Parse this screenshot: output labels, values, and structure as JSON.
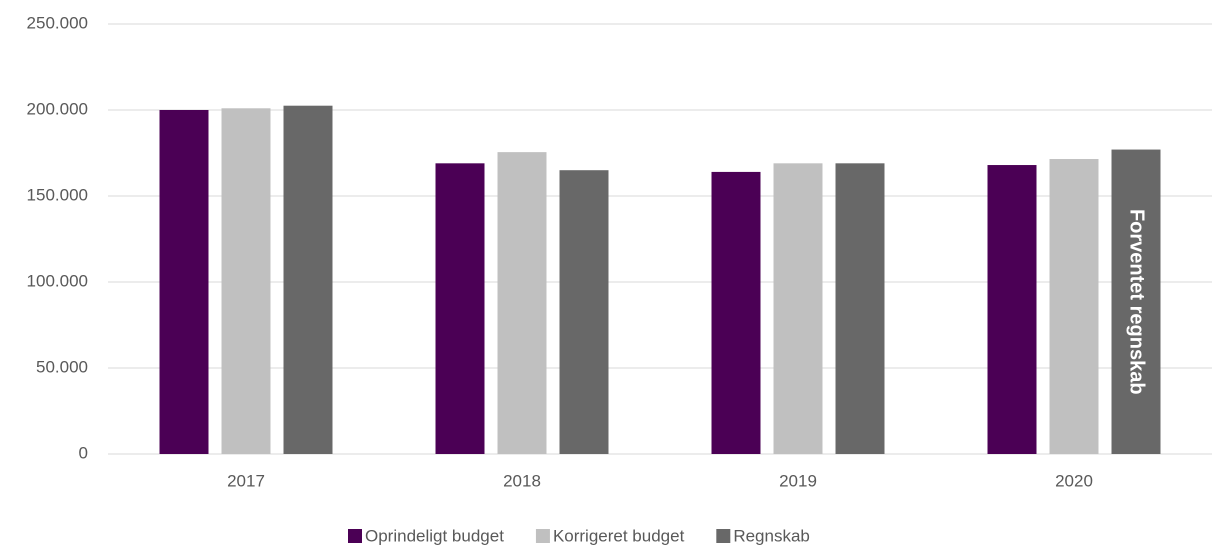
{
  "chart_data": {
    "type": "bar",
    "categories": [
      "2017",
      "2018",
      "2019",
      "2020"
    ],
    "series": [
      {
        "name": "Oprindeligt budget",
        "color": "#4b0055",
        "values": [
          200000,
          169000,
          164000,
          168000
        ]
      },
      {
        "name": "Korrigeret budget",
        "color": "#c0c0c0",
        "values": [
          201000,
          175500,
          169000,
          171500
        ]
      },
      {
        "name": "Regnskab",
        "color": "#686868",
        "values": [
          202500,
          165000,
          169000,
          177000
        ]
      }
    ],
    "annotation": "Forventet regnskab",
    "ylim": [
      0,
      250000
    ],
    "yticks": [
      0,
      {
        "value": 50000,
        "label": "50.000"
      },
      {
        "value": 100000,
        "label": "100.000"
      },
      {
        "value": 150000,
        "label": "150.000"
      },
      {
        "value": 200000,
        "label": "200.000"
      },
      {
        "value": 250000,
        "label": "250.000"
      }
    ],
    "grid": true,
    "legend": "bottom"
  }
}
